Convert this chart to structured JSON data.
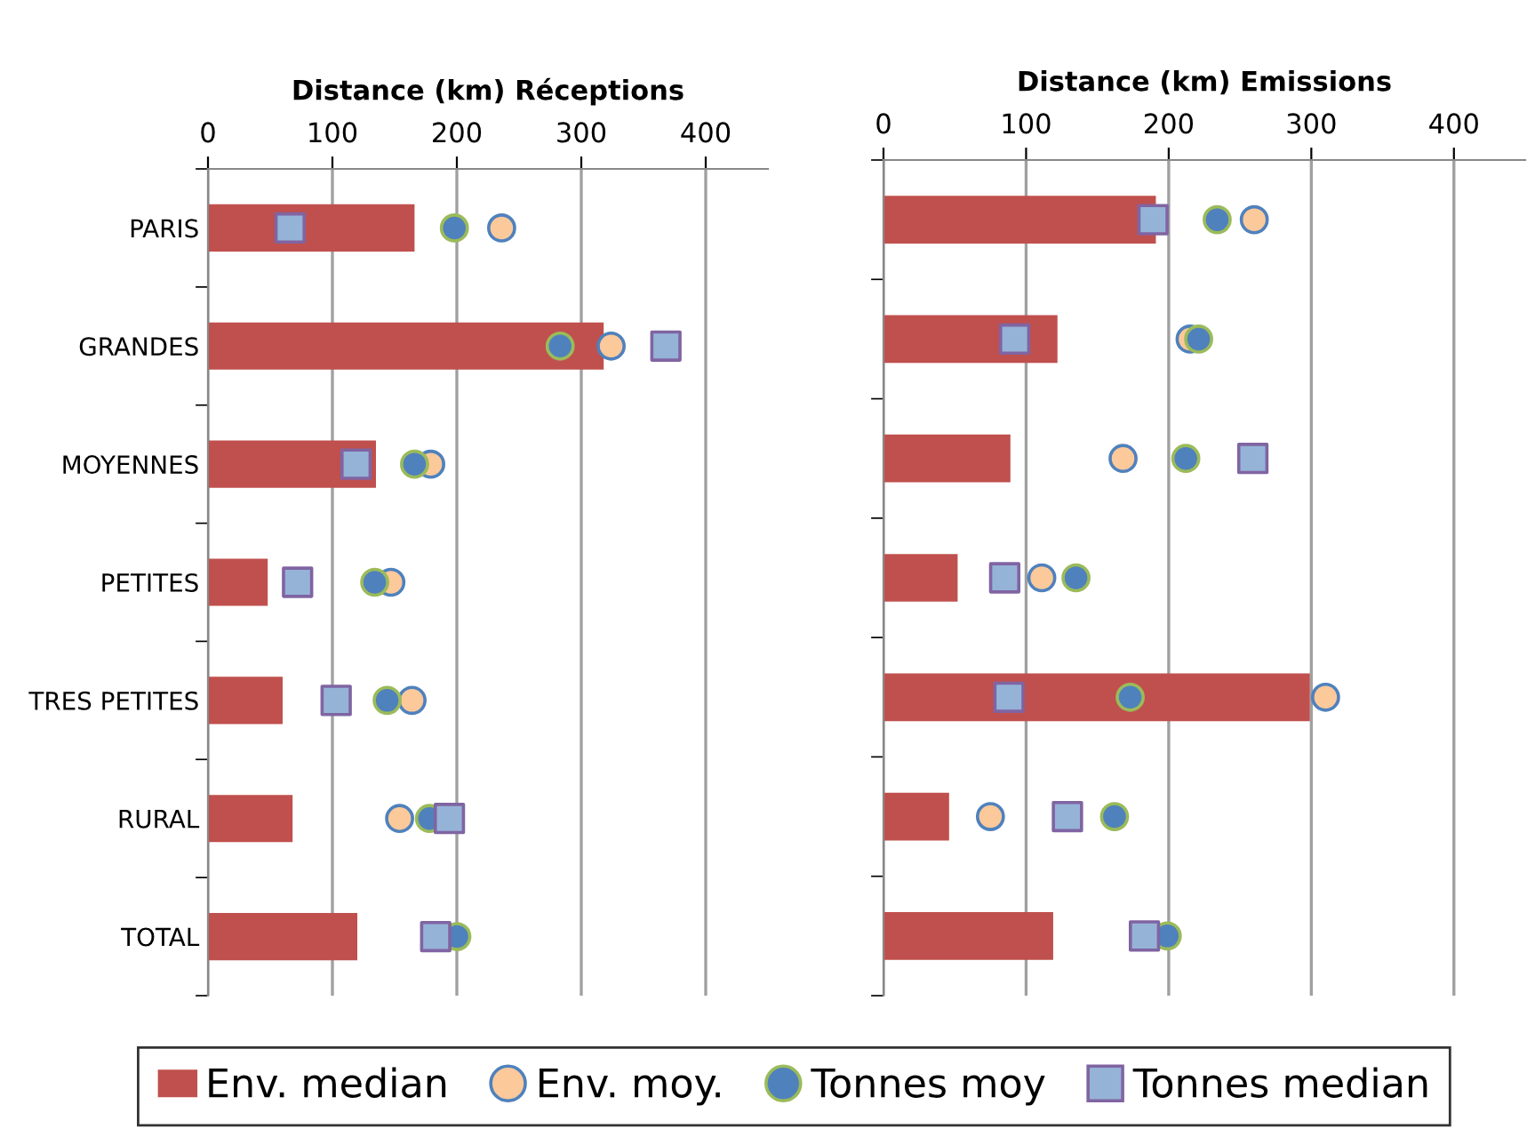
{
  "chart_data": [
    {
      "type": "bar",
      "orientation": "horizontal",
      "title": "Distance (km) Réceptions",
      "categories": [
        "PARIS",
        "GRANDES",
        "MOYENNES",
        "PETITES",
        "TRES PETITES",
        "RURAL",
        "TOTAL"
      ],
      "xlim": [
        0,
        450
      ],
      "xticks": [
        0,
        100,
        200,
        300,
        400
      ],
      "grid": "x",
      "legend": "bottom",
      "series": [
        {
          "name": "Env. median",
          "color": "#c0504d",
          "values": [
            166,
            318,
            135,
            48,
            60,
            68,
            120
          ]
        },
        {
          "name": "Env. moy.",
          "type": "scatter",
          "marker": "circle",
          "color": "#fcc99a",
          "values": [
            236,
            324,
            179,
            147,
            164,
            154,
            null
          ]
        },
        {
          "name": "Tonnes moy",
          "type": "scatter",
          "marker": "circle",
          "color": "#4f81bd",
          "values": [
            198,
            283,
            166,
            134,
            144,
            178,
            200
          ]
        },
        {
          "name": "Tonnes median",
          "type": "scatter",
          "marker": "square",
          "color": "#95b3d7",
          "values": [
            66,
            368,
            119,
            72,
            103,
            194,
            183
          ]
        }
      ]
    },
    {
      "type": "bar",
      "orientation": "horizontal",
      "title": "Distance (km) Emissions",
      "categories": [
        null,
        null,
        null,
        null,
        null,
        null,
        null
      ],
      "xlim": [
        0,
        450
      ],
      "xticks": [
        0,
        100,
        200,
        300,
        400
      ],
      "grid": "x",
      "series": [
        {
          "color": "#c0504d",
          "values": [
            191,
            122,
            89,
            52,
            299,
            46,
            119
          ]
        },
        {
          "type": "scatter",
          "marker": "circle",
          "color": "#fcc99a",
          "values": [
            260,
            215,
            168,
            111,
            310,
            75,
            null
          ]
        },
        {
          "type": "scatter",
          "marker": "circle",
          "color": "#4f81bd",
          "values": [
            234,
            221,
            212,
            135,
            173,
            162,
            199
          ]
        },
        {
          "type": "scatter",
          "marker": "square",
          "color": "#95b3d7",
          "values": [
            189,
            92,
            259,
            85,
            88,
            129,
            183
          ]
        }
      ]
    }
  ]
}
